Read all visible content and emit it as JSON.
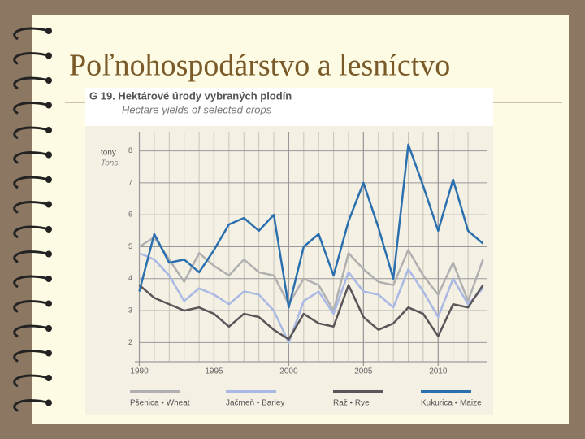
{
  "slide_title": "Poľnohospodárstvo a lesníctvo",
  "chart_data": {
    "type": "line",
    "title": "G 19. Hektárové úrody vybraných plodín",
    "subtitle": "Hectare yields of selected crops",
    "ylabel": "tony",
    "ylabel_en": "Tons",
    "x": [
      1990,
      1991,
      1992,
      1993,
      1994,
      1995,
      1996,
      1997,
      1998,
      1999,
      2000,
      2001,
      2002,
      2003,
      2004,
      2005,
      2006,
      2007,
      2008,
      2009,
      2010,
      2011,
      2012,
      2013
    ],
    "xlim": [
      1989.7,
      2013.3
    ],
    "xticks": [
      1990,
      1995,
      2000,
      2005,
      2010
    ],
    "ylim": [
      1.4,
      8.6
    ],
    "yticks": [
      2,
      3,
      4,
      5,
      6,
      7,
      8
    ],
    "grid": true,
    "legend": "bottom",
    "series": [
      {
        "name": "Pšenica • Wheat",
        "color": "#b0b0b0",
        "values": [
          5.0,
          5.3,
          4.6,
          3.9,
          4.8,
          4.4,
          4.1,
          4.6,
          4.2,
          4.1,
          3.2,
          4.0,
          3.8,
          3.0,
          4.8,
          4.3,
          3.9,
          3.8,
          4.9,
          4.1,
          3.5,
          4.5,
          3.3,
          4.6
        ]
      },
      {
        "name": "Jačmeň • Barley",
        "color": "#a9b9e4",
        "values": [
          4.8,
          4.6,
          4.1,
          3.3,
          3.7,
          3.5,
          3.2,
          3.6,
          3.5,
          3.0,
          2.0,
          3.3,
          3.6,
          2.9,
          4.2,
          3.6,
          3.5,
          3.1,
          4.3,
          3.6,
          2.8,
          4.0,
          3.2,
          3.7
        ]
      },
      {
        "name": "Raž • Rye",
        "color": "#5a5558",
        "values": [
          3.8,
          3.4,
          3.2,
          3.0,
          3.1,
          2.9,
          2.5,
          2.9,
          2.8,
          2.4,
          2.1,
          2.9,
          2.6,
          2.5,
          3.8,
          2.8,
          2.4,
          2.6,
          3.1,
          2.9,
          2.2,
          3.2,
          3.1,
          3.8
        ]
      },
      {
        "name": "Kukurica • Maize",
        "color": "#2a6fae",
        "values": [
          3.6,
          5.4,
          4.5,
          4.6,
          4.2,
          4.9,
          5.7,
          5.9,
          5.5,
          6.0,
          3.1,
          5.0,
          5.4,
          4.1,
          5.8,
          7.0,
          5.6,
          4.0,
          8.2,
          6.9,
          5.5,
          7.1,
          5.5,
          5.1
        ]
      }
    ]
  }
}
